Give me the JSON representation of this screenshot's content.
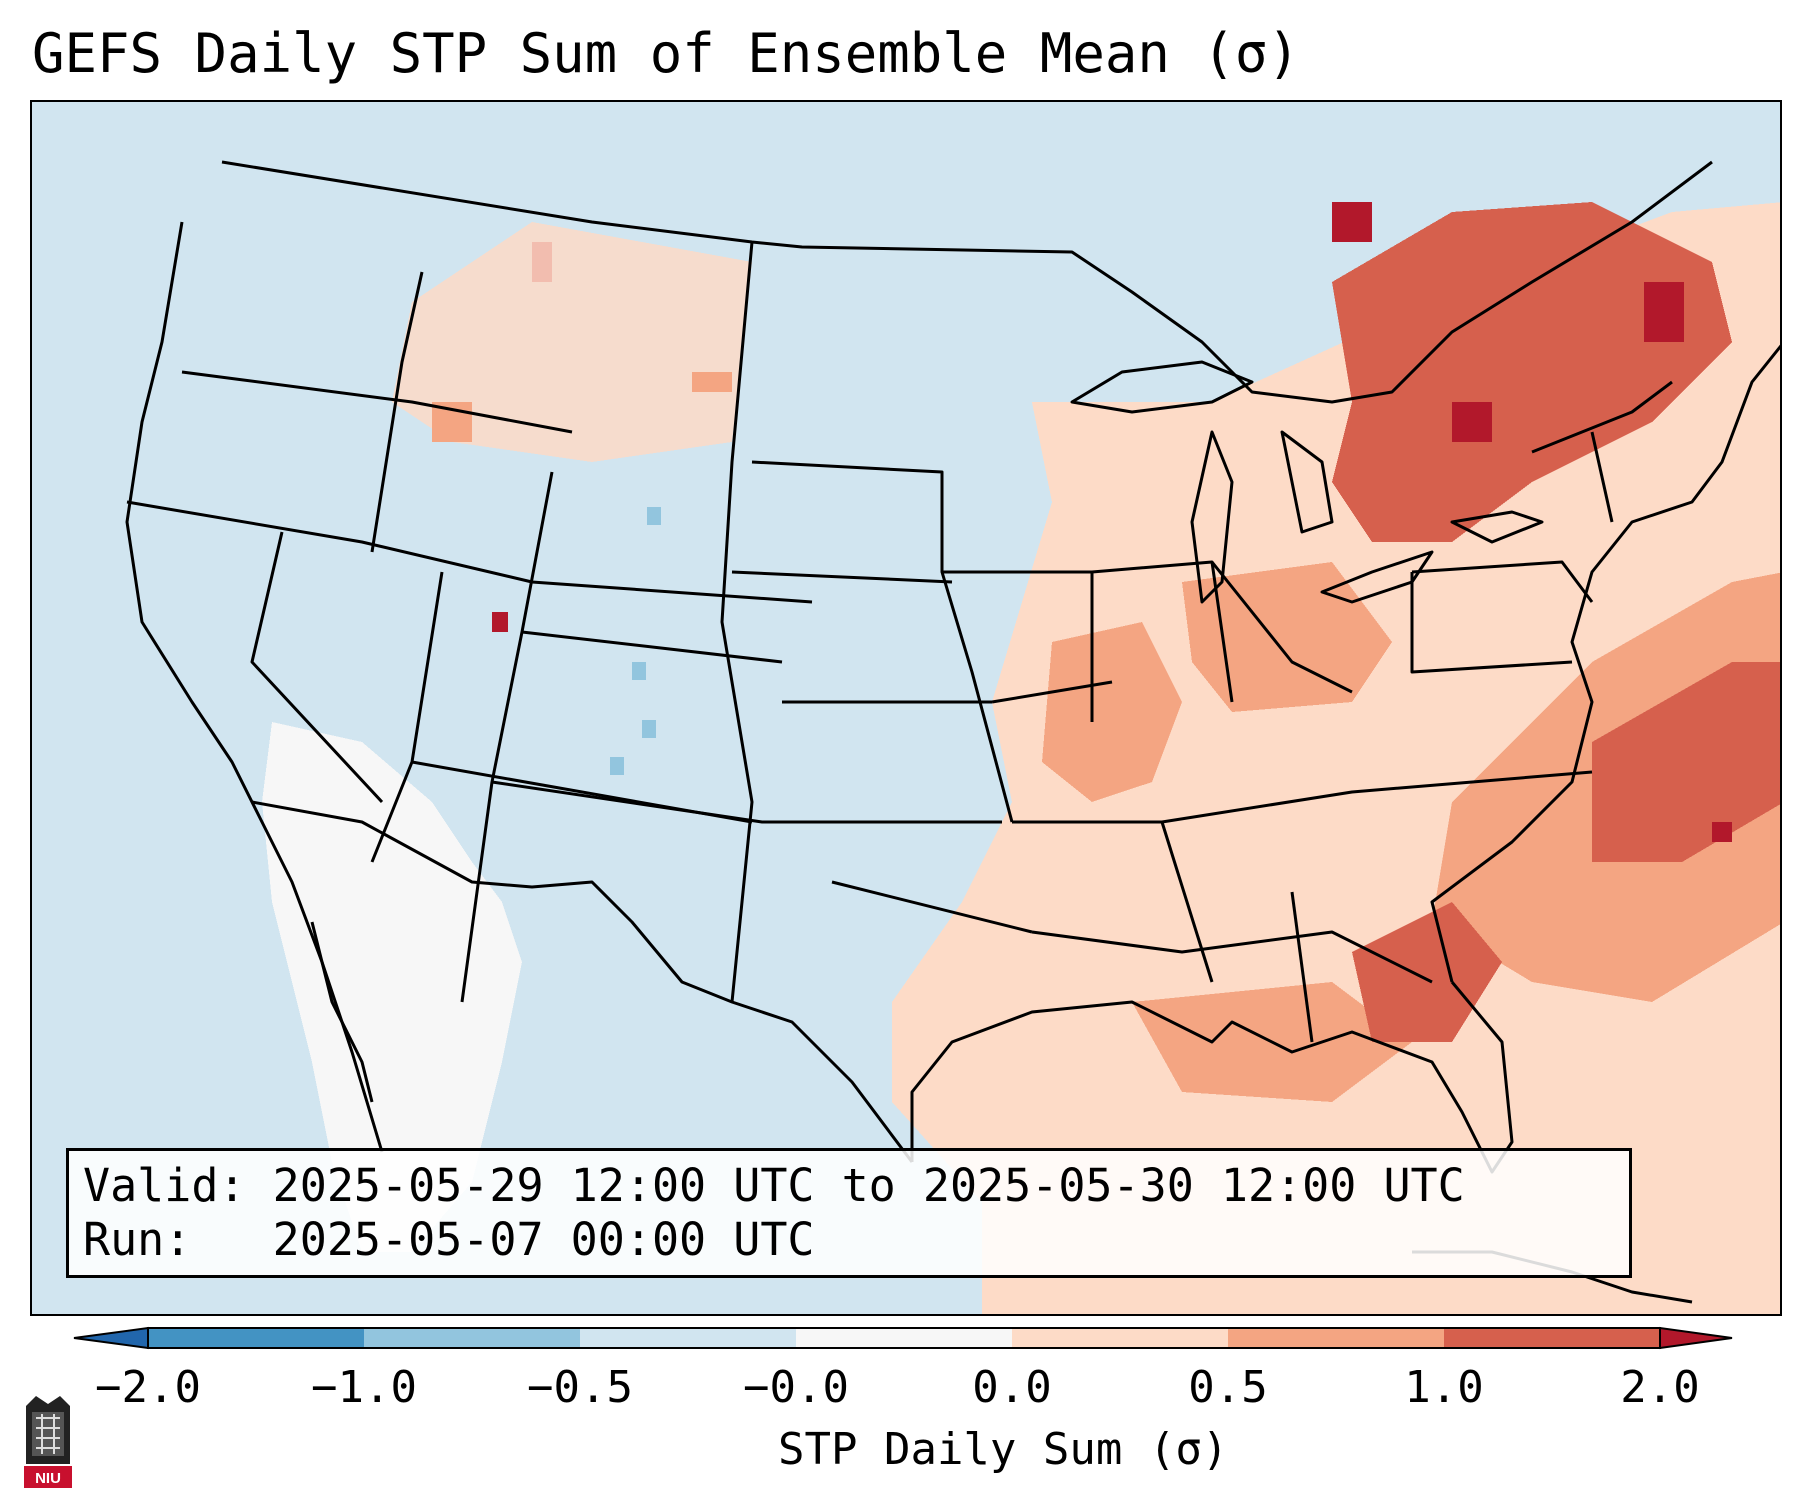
{
  "title": "GEFS Daily STP Sum of Ensemble Mean (σ)",
  "info": {
    "valid_label": "Valid:",
    "valid_value": "2025-05-29 12:00 UTC to 2025-05-30 12:00 UTC",
    "run_label": "Run:",
    "run_value": "2025-05-07 00:00 UTC"
  },
  "colorbar": {
    "label": "STP Daily Sum (σ)",
    "ticks": [
      "−2.0",
      "−1.0",
      "−0.5",
      "−0.0",
      "0.0",
      "0.5",
      "1.0",
      "2.0"
    ],
    "bins": [
      {
        "from": -2.0,
        "to": -1.0,
        "color": "#4393c3"
      },
      {
        "from": -1.0,
        "to": -0.5,
        "color": "#92c5de"
      },
      {
        "from": -0.5,
        "to": -0.0,
        "color": "#d1e5f0"
      },
      {
        "from": -0.0,
        "to": 0.0,
        "color": "#f7f7f7"
      },
      {
        "from": 0.0,
        "to": 0.5,
        "color": "#fddbc7"
      },
      {
        "from": 0.5,
        "to": 1.0,
        "color": "#f4a582"
      },
      {
        "from": 1.0,
        "to": 2.0,
        "color": "#d6604d"
      }
    ],
    "under_color": "#2166ac",
    "over_color": "#b2182b"
  },
  "logo_text": "NIU"
}
